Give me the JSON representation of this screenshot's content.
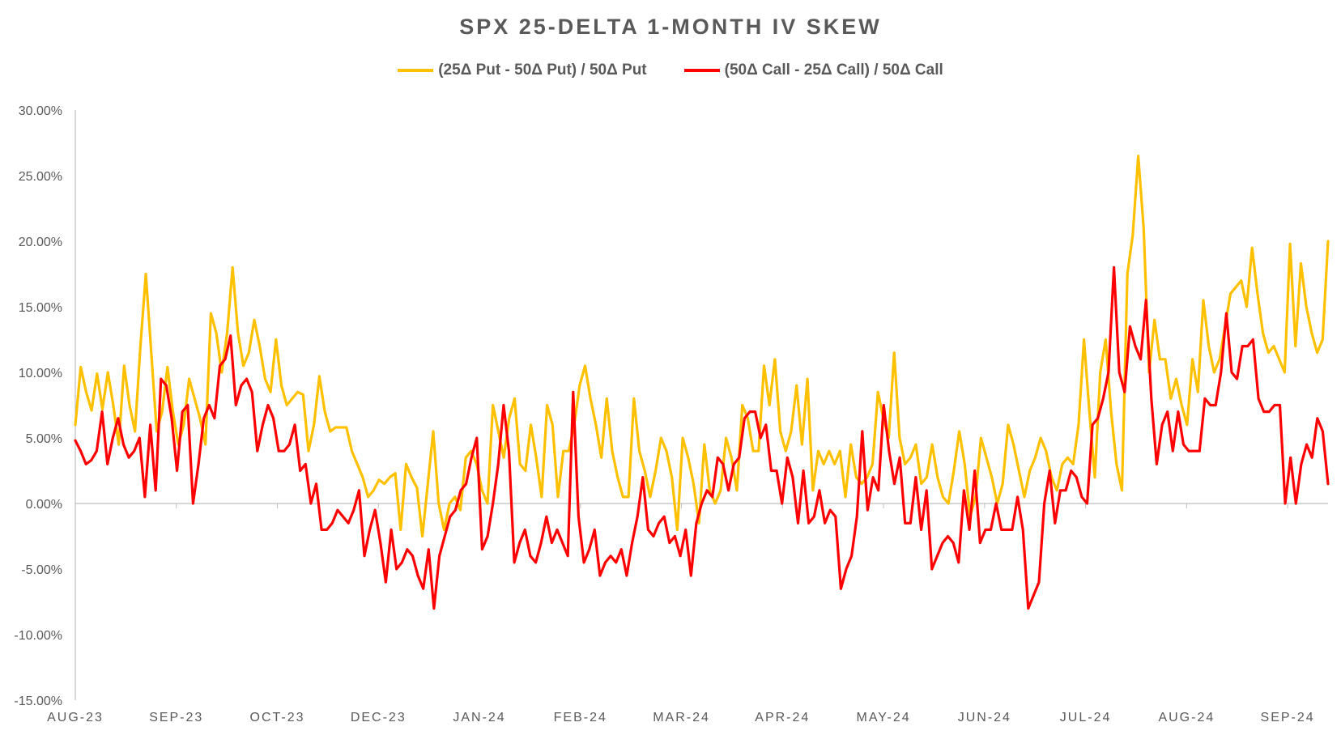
{
  "chart_data": {
    "type": "line",
    "title": "SPX 25-DELTA 1-MONTH IV SKEW",
    "xlabel": "",
    "ylabel": "",
    "ylim": [
      -0.15,
      0.3
    ],
    "y_ticks": [
      "30.00%",
      "25.00%",
      "20.00%",
      "15.00%",
      "10.00%",
      "5.00%",
      "0.00%",
      "-5.00%",
      "-10.00%",
      "-15.00%"
    ],
    "x_ticks": [
      "AUG-23",
      "SEP-23",
      "OCT-23",
      "DEC-23",
      "JAN-24",
      "FEB-24",
      "MAR-24",
      "APR-24",
      "MAY-24",
      "JUN-24",
      "JUL-24",
      "AUG-24",
      "SEP-24"
    ],
    "legend_position": "top-center",
    "grid": false,
    "series": [
      {
        "name": "(25Δ Put - 50Δ Put) / 50Δ Put",
        "color": "#FFC000",
        "values": [
          0.06,
          0.104,
          0.085,
          0.071,
          0.099,
          0.072,
          0.1,
          0.075,
          0.045,
          0.105,
          0.075,
          0.055,
          0.12,
          0.175,
          0.115,
          0.055,
          0.07,
          0.104,
          0.07,
          0.045,
          0.06,
          0.095,
          0.08,
          0.065,
          0.045,
          0.145,
          0.13,
          0.1,
          0.13,
          0.18,
          0.13,
          0.105,
          0.115,
          0.14,
          0.12,
          0.095,
          0.085,
          0.125,
          0.09,
          0.075,
          0.08,
          0.085,
          0.083,
          0.04,
          0.06,
          0.097,
          0.07,
          0.055,
          0.058,
          0.058,
          0.058,
          0.04,
          0.03,
          0.02,
          0.005,
          0.01,
          0.018,
          0.015,
          0.02,
          0.023,
          -0.02,
          0.03,
          0.02,
          0.012,
          -0.025,
          0.015,
          0.055,
          0.0,
          -0.02,
          0.0,
          0.005,
          -0.005,
          0.035,
          0.04,
          0.03,
          0.01,
          0.0,
          0.075,
          0.055,
          0.035,
          0.065,
          0.08,
          0.03,
          0.025,
          0.06,
          0.035,
          0.005,
          0.075,
          0.06,
          0.005,
          0.04,
          0.04,
          0.06,
          0.09,
          0.105,
          0.08,
          0.06,
          0.035,
          0.08,
          0.04,
          0.02,
          0.005,
          0.005,
          0.08,
          0.04,
          0.025,
          0.005,
          0.025,
          0.05,
          0.04,
          0.02,
          -0.02,
          0.05,
          0.035,
          0.015,
          -0.015,
          0.045,
          0.01,
          0.0,
          0.01,
          0.05,
          0.035,
          0.01,
          0.075,
          0.065,
          0.04,
          0.04,
          0.105,
          0.075,
          0.11,
          0.055,
          0.04,
          0.055,
          0.09,
          0.045,
          0.095,
          0.01,
          0.04,
          0.03,
          0.04,
          0.03,
          0.04,
          0.005,
          0.045,
          0.02,
          0.015,
          0.02,
          0.03,
          0.085,
          0.065,
          0.05,
          0.115,
          0.05,
          0.03,
          0.035,
          0.045,
          0.015,
          0.02,
          0.045,
          0.02,
          0.005,
          0.0,
          0.025,
          0.055,
          0.03,
          -0.01,
          0.005,
          0.05,
          0.035,
          0.02,
          0.0,
          0.015,
          0.06,
          0.045,
          0.025,
          0.005,
          0.025,
          0.035,
          0.05,
          0.04,
          0.02,
          0.01,
          0.03,
          0.035,
          0.03,
          0.06,
          0.125,
          0.07,
          0.02,
          0.1,
          0.125,
          0.07,
          0.03,
          0.01,
          0.175,
          0.205,
          0.265,
          0.21,
          0.1,
          0.14,
          0.11,
          0.11,
          0.08,
          0.095,
          0.075,
          0.06,
          0.11,
          0.085,
          0.155,
          0.12,
          0.1,
          0.11,
          0.135,
          0.16,
          0.165,
          0.17,
          0.15,
          0.195,
          0.16,
          0.13,
          0.115,
          0.12,
          0.11,
          0.1,
          0.198,
          0.12,
          0.183,
          0.15,
          0.13,
          0.115,
          0.125,
          0.2
        ]
      },
      {
        "name": "(50Δ Call - 25Δ Call) / 50Δ Call",
        "color": "#FF0000",
        "values": [
          0.048,
          0.04,
          0.03,
          0.033,
          0.04,
          0.07,
          0.03,
          0.05,
          0.065,
          0.045,
          0.035,
          0.04,
          0.05,
          0.005,
          0.06,
          0.01,
          0.095,
          0.09,
          0.065,
          0.025,
          0.07,
          0.075,
          0.0,
          0.03,
          0.065,
          0.075,
          0.065,
          0.105,
          0.11,
          0.128,
          0.075,
          0.09,
          0.095,
          0.085,
          0.04,
          0.06,
          0.075,
          0.065,
          0.04,
          0.04,
          0.045,
          0.06,
          0.025,
          0.03,
          0.0,
          0.015,
          -0.02,
          -0.02,
          -0.015,
          -0.005,
          -0.01,
          -0.015,
          -0.005,
          0.01,
          -0.04,
          -0.02,
          -0.005,
          -0.03,
          -0.06,
          -0.02,
          -0.05,
          -0.045,
          -0.035,
          -0.04,
          -0.055,
          -0.065,
          -0.035,
          -0.08,
          -0.04,
          -0.025,
          -0.01,
          -0.005,
          0.01,
          0.015,
          0.035,
          0.05,
          -0.035,
          -0.025,
          0.0,
          0.03,
          0.075,
          0.04,
          -0.045,
          -0.03,
          -0.02,
          -0.04,
          -0.045,
          -0.03,
          -0.01,
          -0.03,
          -0.02,
          -0.03,
          -0.04,
          0.085,
          -0.01,
          -0.045,
          -0.035,
          -0.02,
          -0.055,
          -0.045,
          -0.04,
          -0.045,
          -0.035,
          -0.055,
          -0.03,
          -0.01,
          0.02,
          -0.02,
          -0.025,
          -0.015,
          -0.01,
          -0.03,
          -0.025,
          -0.04,
          -0.02,
          -0.055,
          -0.015,
          0.0,
          0.01,
          0.005,
          0.035,
          0.03,
          0.01,
          0.03,
          0.035,
          0.065,
          0.07,
          0.07,
          0.05,
          0.06,
          0.025,
          0.025,
          0.0,
          0.035,
          0.02,
          -0.015,
          0.025,
          -0.015,
          -0.01,
          0.01,
          -0.015,
          -0.005,
          -0.01,
          -0.065,
          -0.05,
          -0.04,
          -0.01,
          0.055,
          -0.005,
          0.02,
          0.01,
          0.075,
          0.04,
          0.015,
          0.035,
          -0.015,
          -0.015,
          0.02,
          -0.02,
          0.01,
          -0.05,
          -0.04,
          -0.03,
          -0.025,
          -0.03,
          -0.045,
          0.01,
          -0.02,
          0.025,
          -0.03,
          -0.02,
          -0.02,
          0.0,
          -0.02,
          -0.02,
          -0.02,
          0.005,
          -0.02,
          -0.08,
          -0.07,
          -0.06,
          0.0,
          0.025,
          -0.015,
          0.01,
          0.01,
          0.025,
          0.02,
          0.005,
          0.0,
          0.06,
          0.065,
          0.08,
          0.1,
          0.18,
          0.1,
          0.085,
          0.135,
          0.12,
          0.11,
          0.155,
          0.08,
          0.03,
          0.06,
          0.07,
          0.04,
          0.07,
          0.045,
          0.04,
          0.04,
          0.04,
          0.08,
          0.075,
          0.075,
          0.1,
          0.145,
          0.1,
          0.095,
          0.12,
          0.12,
          0.125,
          0.08,
          0.07,
          0.07,
          0.075,
          0.075,
          0.0,
          0.035,
          0.0,
          0.03,
          0.045,
          0.035,
          0.065,
          0.055,
          0.015
        ]
      }
    ]
  }
}
